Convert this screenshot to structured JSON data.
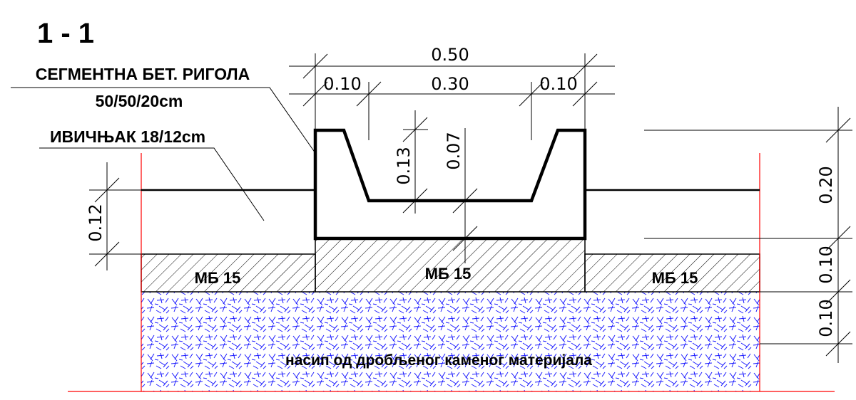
{
  "section_title": "1 - 1",
  "labels": {
    "rigola_line1": "СЕГМЕНТНА БЕТ. РИГОЛА",
    "rigola_line2": "50/50/20cm",
    "ivicnjak": "ИВИЧЊАК 18/12cm",
    "mb_left": "МБ 15",
    "mb_center": "МБ 15",
    "mb_right": "МБ 15",
    "fill_material": "насип од дробљеног каменог материјала"
  },
  "dimensions": {
    "top_total": "0.50",
    "top_left": "0.10",
    "top_mid": "0.30",
    "top_right": "0.10",
    "depth_outer": "0.13",
    "depth_inner": "0.07",
    "left_curb": "0.12",
    "right_top": "0.20",
    "right_mid": "0.10",
    "right_low": "0.10"
  },
  "colors": {
    "outline": "#000000",
    "boundary_red": "#ff0000",
    "gravel_blue": "#1a1aff",
    "hatch": "#000000"
  }
}
